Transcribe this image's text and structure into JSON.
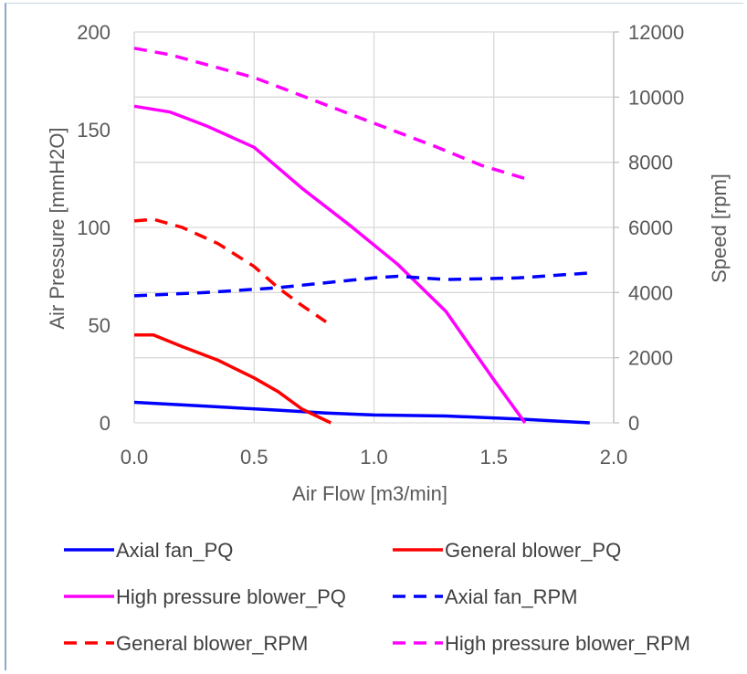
{
  "chart_data": {
    "type": "line",
    "xlabel": "Air Flow [m3/min]",
    "ylabel_left": "Air Pressure [mmH2O]",
    "ylabel_right": "Speed [rpm]",
    "xlim": [
      0,
      2.0
    ],
    "ylim_left": [
      0,
      200
    ],
    "ylim_right": [
      0,
      12000
    ],
    "x_ticks": [
      "0.0",
      "0.5",
      "1.0",
      "1.5",
      "2.0"
    ],
    "y_left_ticks": [
      "0",
      "50",
      "100",
      "150",
      "200"
    ],
    "y_right_ticks": [
      "0",
      "2000",
      "4000",
      "6000",
      "8000",
      "10000",
      "12000"
    ],
    "grid": true,
    "legend_position": "bottom",
    "series": [
      {
        "name": "Axial fan_PQ",
        "axis": "left",
        "style": "solid",
        "color": "#0000ff",
        "x": [
          0.0,
          0.3,
          0.6,
          0.8,
          1.0,
          1.3,
          1.6,
          1.9
        ],
        "y": [
          10.5,
          8.5,
          6.5,
          5.0,
          4.0,
          3.5,
          2.0,
          0.0
        ]
      },
      {
        "name": "General blower_PQ",
        "axis": "left",
        "style": "solid",
        "color": "#ff0000",
        "x": [
          0.0,
          0.08,
          0.2,
          0.35,
          0.5,
          0.6,
          0.7,
          0.82
        ],
        "y": [
          45,
          45,
          39,
          32,
          23,
          16,
          7,
          0
        ]
      },
      {
        "name": "High pressure blower_PQ",
        "axis": "left",
        "style": "solid",
        "color": "#ff00ff",
        "x": [
          0.0,
          0.15,
          0.3,
          0.5,
          0.7,
          0.9,
          1.1,
          1.3,
          1.5,
          1.63
        ],
        "y": [
          162,
          159,
          152,
          141,
          120,
          101,
          81,
          57,
          22,
          0
        ]
      },
      {
        "name": "Axial fan_RPM",
        "axis": "right",
        "style": "dashed",
        "color": "#0000ff",
        "x": [
          0.0,
          0.3,
          0.6,
          0.8,
          1.0,
          1.1,
          1.3,
          1.6,
          1.9
        ],
        "y": [
          3900,
          4000,
          4150,
          4300,
          4450,
          4500,
          4400,
          4450,
          4600
        ]
      },
      {
        "name": "General blower_RPM",
        "axis": "right",
        "style": "dashed",
        "color": "#ff0000",
        "x": [
          0.0,
          0.08,
          0.2,
          0.35,
          0.5,
          0.6,
          0.7,
          0.8
        ],
        "y": [
          6200,
          6250,
          6000,
          5500,
          4800,
          4150,
          3600,
          3100
        ]
      },
      {
        "name": "High pressure blower_RPM",
        "axis": "right",
        "style": "dashed",
        "color": "#ff00ff",
        "x": [
          0.0,
          0.15,
          0.3,
          0.5,
          0.75,
          1.0,
          1.25,
          1.45,
          1.63
        ],
        "y": [
          11500,
          11300,
          11000,
          10600,
          9900,
          9200,
          8500,
          7900,
          7500
        ]
      }
    ]
  }
}
